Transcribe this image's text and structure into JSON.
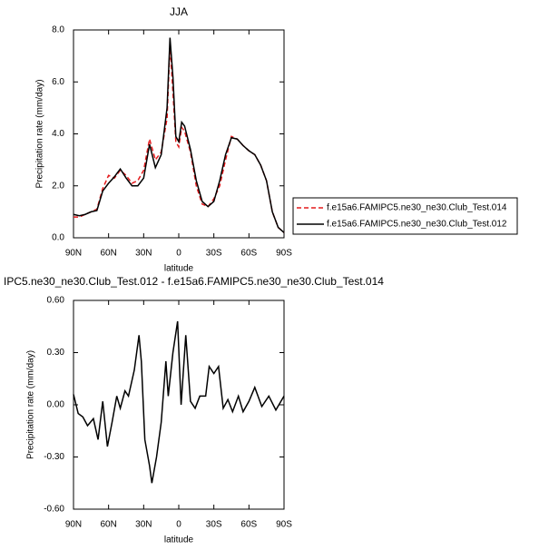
{
  "chart_data": [
    {
      "type": "line",
      "title": "JJA",
      "x": [
        90,
        85,
        80,
        75,
        70,
        65,
        60,
        55,
        50,
        45,
        40,
        35,
        30,
        25,
        20,
        15,
        10,
        7.5,
        5,
        2.5,
        0,
        -2.5,
        -5,
        -10,
        -15,
        -20,
        -25,
        -30,
        -35,
        -40,
        -45,
        -50,
        -55,
        -60,
        -65,
        -70,
        -75,
        -80,
        -85,
        -90
      ],
      "xlim": [
        90,
        -90
      ],
      "xticks": [
        {
          "value": 90,
          "label": "90N"
        },
        {
          "value": 60,
          "label": "60N"
        },
        {
          "value": 30,
          "label": "30N"
        },
        0,
        {
          "value": -30,
          "label": "30S"
        },
        {
          "value": -60,
          "label": "60S"
        },
        {
          "value": -90,
          "label": "90S"
        }
      ],
      "ylim": [
        0,
        8
      ],
      "yticks": [
        {
          "value": 0,
          "label": "0.0"
        },
        {
          "value": 2,
          "label": "2.0"
        },
        {
          "value": 4,
          "label": "4.0"
        },
        {
          "value": 6,
          "label": "6.0"
        },
        {
          "value": 8,
          "label": "8.0"
        }
      ],
      "xlabel": "latitude",
      "ylabel": "Precipitation rate (mm/day)",
      "legend": "right",
      "series": [
        {
          "name": "f.e15a6.FAMIPC5.ne30_ne30.Club_Test.014",
          "color": "#e41a1c",
          "dash": "dashed",
          "values": [
            0.8,
            0.8,
            0.9,
            1.0,
            1.1,
            1.9,
            2.4,
            2.3,
            2.6,
            2.4,
            2.1,
            2.2,
            2.6,
            3.8,
            3.0,
            3.3,
            4.6,
            7.45,
            5.6,
            3.7,
            3.5,
            4.25,
            4.1,
            3.3,
            2.0,
            1.3,
            1.2,
            1.5,
            2.0,
            3.0,
            3.9,
            3.8,
            3.55,
            3.35,
            3.2,
            2.8,
            2.2,
            1.0,
            0.4,
            0.2
          ]
        },
        {
          "name": "f.e15a6.FAMIPC5.ne30_ne30.Club_Test.012",
          "color": "#000000",
          "dash": "solid",
          "values": [
            0.9,
            0.85,
            0.9,
            1.0,
            1.05,
            1.8,
            2.1,
            2.35,
            2.65,
            2.3,
            2.0,
            2.0,
            2.3,
            3.6,
            2.7,
            3.2,
            5.0,
            7.7,
            6.2,
            3.9,
            3.7,
            4.45,
            4.3,
            3.4,
            2.2,
            1.4,
            1.2,
            1.4,
            2.2,
            3.2,
            3.85,
            3.8,
            3.55,
            3.35,
            3.2,
            2.8,
            2.2,
            1.0,
            0.4,
            0.2
          ]
        }
      ]
    },
    {
      "type": "line",
      "title": "IPC5.ne30_ne30.Club_Test.012 - f.e15a6.FAMIPC5.ne30_ne30.Club_Test.014",
      "x": [
        90,
        86,
        82,
        78,
        73,
        69,
        65,
        61,
        57,
        53,
        50,
        46,
        43,
        38,
        34,
        32,
        29,
        25,
        23,
        19,
        15,
        11,
        9,
        5,
        1,
        -2,
        -6,
        -10,
        -14,
        -18,
        -23,
        -26,
        -30,
        -34,
        -38,
        -42,
        -46,
        -51,
        -55,
        -60,
        -65,
        -71,
        -77,
        -83,
        -90
      ],
      "xlim": [
        90,
        -90
      ],
      "xticks": [
        {
          "value": 90,
          "label": "90N"
        },
        {
          "value": 60,
          "label": "60N"
        },
        {
          "value": 30,
          "label": "30N"
        },
        0,
        {
          "value": -30,
          "label": "30S"
        },
        {
          "value": -60,
          "label": "60S"
        },
        {
          "value": -90,
          "label": "90S"
        }
      ],
      "ylim": [
        -0.6,
        0.6
      ],
      "yticks": [
        {
          "value": -0.6,
          "label": "-0.60"
        },
        {
          "value": -0.3,
          "label": "-0.30"
        },
        {
          "value": 0,
          "label": "0.00"
        },
        {
          "value": 0.3,
          "label": "0.30"
        },
        {
          "value": 0.6,
          "label": "0.60"
        }
      ],
      "xlabel": "latitude",
      "ylabel": "Precipitation rate (mm/day)",
      "series": [
        {
          "color": "#000000",
          "dash": "solid",
          "values": [
            0.06,
            -0.05,
            -0.07,
            -0.12,
            -0.08,
            -0.2,
            0.02,
            -0.24,
            -0.1,
            0.05,
            -0.02,
            0.08,
            0.05,
            0.2,
            0.4,
            0.25,
            -0.2,
            -0.35,
            -0.45,
            -0.3,
            -0.1,
            0.25,
            0.05,
            0.3,
            0.48,
            0.0,
            0.4,
            0.02,
            -0.02,
            0.05,
            0.05,
            0.22,
            0.18,
            0.22,
            -0.02,
            0.03,
            -0.04,
            0.05,
            -0.04,
            0.02,
            0.1,
            -0.01,
            0.05,
            -0.03,
            0.05
          ]
        }
      ]
    }
  ]
}
